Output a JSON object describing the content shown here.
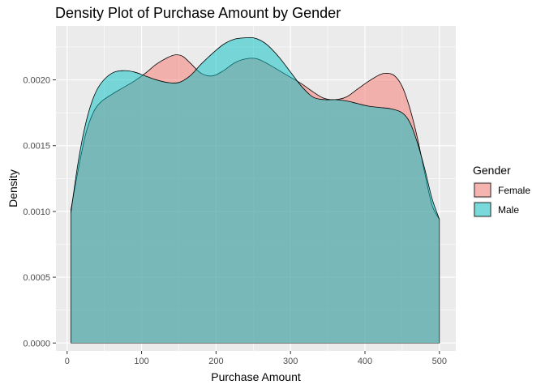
{
  "chart_data": {
    "type": "area",
    "title": "Density Plot of Purchase Amount by Gender",
    "xlabel": "Purchase Amount",
    "ylabel": "Density",
    "xlim": [
      -15,
      522
    ],
    "ylim": [
      -6e-05,
      0.00241
    ],
    "x_ticks": [
      0,
      100,
      200,
      300,
      400,
      500
    ],
    "x_tick_labels": [
      "0",
      "100",
      "200",
      "300",
      "400",
      "500"
    ],
    "y_ticks": [
      0.0,
      0.0005,
      0.001,
      0.0015,
      0.002
    ],
    "y_tick_labels": [
      "0.0000",
      "0.0005",
      "0.0010",
      "0.0015",
      "0.0020"
    ],
    "grid": true,
    "legend": {
      "title": "Gender",
      "position": "right"
    },
    "series": [
      {
        "name": "Female",
        "color": "#F8766D",
        "x": [
          5,
          15,
          25,
          35,
          45,
          60,
          75,
          90,
          105,
          120,
          135,
          145,
          155,
          165,
          180,
          195,
          210,
          225,
          240,
          255,
          270,
          285,
          300,
          315,
          330,
          345,
          360,
          375,
          390,
          405,
          420,
          430,
          440,
          450,
          460,
          470,
          480,
          490,
          500
        ],
        "y": [
          0.00101,
          0.00132,
          0.00159,
          0.00175,
          0.00183,
          0.00189,
          0.00194,
          0.00199,
          0.00205,
          0.00212,
          0.00217,
          0.00219,
          0.00218,
          0.00213,
          0.00205,
          0.00203,
          0.00207,
          0.00213,
          0.00216,
          0.00216,
          0.00212,
          0.00207,
          0.00202,
          0.00197,
          0.00191,
          0.00186,
          0.00185,
          0.00187,
          0.00193,
          0.00199,
          0.00204,
          0.00205,
          0.00203,
          0.00195,
          0.00179,
          0.00157,
          0.0013,
          0.00105,
          0.00094
        ]
      },
      {
        "name": "Male",
        "color": "#00BFC4",
        "x": [
          5,
          15,
          25,
          35,
          45,
          60,
          75,
          90,
          105,
          120,
          135,
          150,
          165,
          180,
          195,
          210,
          225,
          240,
          250,
          260,
          270,
          285,
          300,
          315,
          330,
          345,
          360,
          375,
          390,
          405,
          420,
          435,
          450,
          460,
          470,
          480,
          490,
          500
        ],
        "y": [
          0.00099,
          0.00138,
          0.00167,
          0.00186,
          0.00197,
          0.00205,
          0.00207,
          0.00206,
          0.00203,
          0.002,
          0.00198,
          0.00198,
          0.00203,
          0.00212,
          0.0022,
          0.00227,
          0.00231,
          0.00232,
          0.00232,
          0.0023,
          0.00226,
          0.00217,
          0.00206,
          0.00195,
          0.00187,
          0.00185,
          0.00185,
          0.00184,
          0.00182,
          0.0018,
          0.00179,
          0.00178,
          0.00175,
          0.00168,
          0.00153,
          0.00133,
          0.0011,
          0.00094
        ]
      }
    ]
  }
}
